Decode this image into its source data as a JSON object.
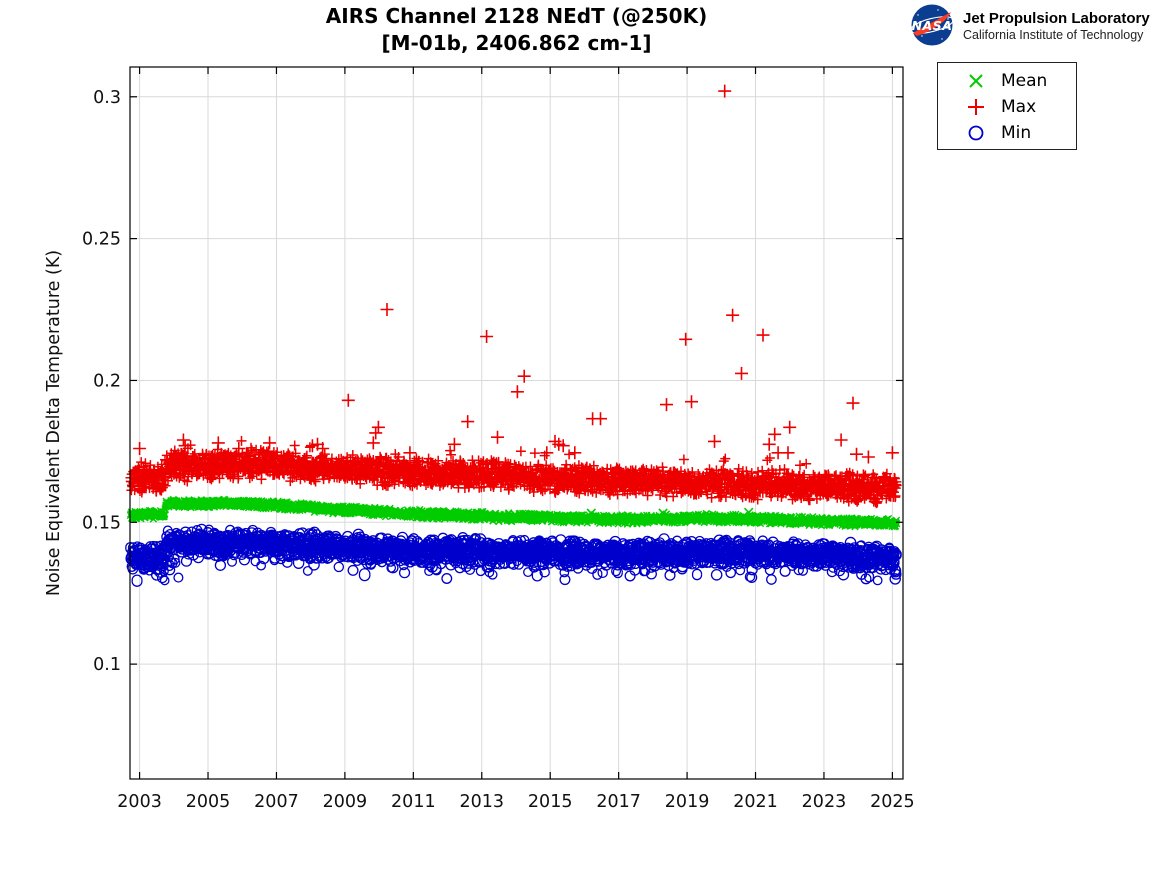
{
  "header": {
    "logo": {
      "nasa_text": "NASA",
      "org_line1": "Jet Propulsion Laboratory",
      "org_line2": "California Institute of Technology",
      "meatball_blue": "#0b3d91",
      "swoosh_red": "#fc3d21"
    }
  },
  "chart_data": {
    "type": "scatter",
    "title_line1": "AIRS Channel 2128 NEdT (@250K)",
    "title_line2": "[M-01b, 2406.862 cm-1]",
    "xlabel": "",
    "ylabel": "Noise Equivalent Delta Temperature (K)",
    "xlim": [
      2002.72,
      2025.31
    ],
    "ylim": [
      0.0595,
      0.3105
    ],
    "xticks": [
      2003,
      2005,
      2007,
      2009,
      2011,
      2013,
      2015,
      2017,
      2019,
      2021,
      2023,
      2025
    ],
    "yticks": [
      0.1,
      0.15,
      0.2,
      0.25,
      0.3
    ],
    "ytick_labels": [
      "0.1",
      "0.15",
      "0.2",
      "0.25",
      "0.3"
    ],
    "grid": true,
    "grid_color": "#d9d9d9",
    "axis_color": "#000000",
    "data_start": 2002.73,
    "data_end": 2025.13,
    "legend": {
      "position": "outside-top-right",
      "entries": [
        {
          "label": "Mean",
          "marker": "x",
          "color": "#00cc00"
        },
        {
          "label": "Max",
          "marker": "+",
          "color": "#ee0000"
        },
        {
          "label": "Min",
          "marker": "o",
          "color": "#0000cc"
        }
      ]
    },
    "series": [
      {
        "name": "Mean",
        "marker": "x",
        "color": "#00cc00",
        "band": {
          "halfwidth": 0.0013,
          "anchors": [
            [
              2002.73,
              0.1526
            ],
            [
              2003.3,
              0.1528
            ],
            [
              2003.72,
              0.1526
            ],
            [
              2003.78,
              0.1566
            ],
            [
              2004.5,
              0.1567
            ],
            [
              2005.5,
              0.1566
            ],
            [
              2006.5,
              0.1563
            ],
            [
              2007.5,
              0.1556
            ],
            [
              2008.5,
              0.1548
            ],
            [
              2009.5,
              0.154
            ],
            [
              2010.5,
              0.1532
            ],
            [
              2011.5,
              0.1527
            ],
            [
              2012.5,
              0.1522
            ],
            [
              2013.5,
              0.152
            ],
            [
              2014.5,
              0.1517
            ],
            [
              2015.5,
              0.1514
            ],
            [
              2016.5,
              0.1511
            ],
            [
              2017.5,
              0.151
            ],
            [
              2018.5,
              0.1513
            ],
            [
              2019.5,
              0.1514
            ],
            [
              2020.5,
              0.1512
            ],
            [
              2021.5,
              0.1509
            ],
            [
              2022.5,
              0.1505
            ],
            [
              2023.5,
              0.1501
            ],
            [
              2024.5,
              0.1498
            ],
            [
              2025.13,
              0.1497
            ]
          ]
        },
        "outliers": [
          [
            2016.2,
            0.1532
          ],
          [
            2018.3,
            0.1532
          ],
          [
            2020.8,
            0.1535
          ]
        ]
      },
      {
        "name": "Max",
        "marker": "+",
        "color": "#ee0000",
        "band": {
          "halfwidth": 0.0042,
          "anchors": [
            [
              2002.73,
              0.1652
            ],
            [
              2003.2,
              0.1655
            ],
            [
              2003.72,
              0.1651
            ],
            [
              2003.78,
              0.1692
            ],
            [
              2004.5,
              0.17
            ],
            [
              2005.5,
              0.1704
            ],
            [
              2006.5,
              0.1705
            ],
            [
              2007.5,
              0.17
            ],
            [
              2008.5,
              0.1693
            ],
            [
              2009.5,
              0.1685
            ],
            [
              2010.5,
              0.1679
            ],
            [
              2011.5,
              0.1673
            ],
            [
              2012.5,
              0.1669
            ],
            [
              2013.5,
              0.1664
            ],
            [
              2014.5,
              0.1659
            ],
            [
              2015.5,
              0.1652
            ],
            [
              2016.5,
              0.1647
            ],
            [
              2017.5,
              0.1643
            ],
            [
              2018.5,
              0.164
            ],
            [
              2019.5,
              0.1638
            ],
            [
              2020.5,
              0.1636
            ],
            [
              2021.5,
              0.1631
            ],
            [
              2022.5,
              0.1627
            ],
            [
              2023.5,
              0.1624
            ],
            [
              2024.5,
              0.162
            ],
            [
              2025.13,
              0.1617
            ]
          ]
        },
        "outliers": [
          [
            2003.0,
            0.176
          ],
          [
            2004.28,
            0.179
          ],
          [
            2004.33,
            0.177
          ],
          [
            2005.3,
            0.178
          ],
          [
            2005.9,
            0.176
          ],
          [
            2006.8,
            0.178
          ],
          [
            2008.05,
            0.177
          ],
          [
            2008.2,
            0.1775
          ],
          [
            2008.35,
            0.176
          ],
          [
            2009.1,
            0.193
          ],
          [
            2009.83,
            0.178
          ],
          [
            2009.9,
            0.1815
          ],
          [
            2009.98,
            0.1835
          ],
          [
            2010.23,
            0.225
          ],
          [
            2010.9,
            0.1745
          ],
          [
            2012.2,
            0.1775
          ],
          [
            2012.59,
            0.1855
          ],
          [
            2013.14,
            0.2155
          ],
          [
            2013.46,
            0.18
          ],
          [
            2014.04,
            0.196
          ],
          [
            2014.24,
            0.2015
          ],
          [
            2014.9,
            0.1745
          ],
          [
            2015.14,
            0.1785
          ],
          [
            2015.25,
            0.1775
          ],
          [
            2015.38,
            0.177
          ],
          [
            2015.72,
            0.1745
          ],
          [
            2016.24,
            0.1865
          ],
          [
            2016.47,
            0.1865
          ],
          [
            2018.4,
            0.1915
          ],
          [
            2018.96,
            0.2145
          ],
          [
            2019.13,
            0.1925
          ],
          [
            2019.8,
            0.1785
          ],
          [
            2020.1,
            0.302
          ],
          [
            2020.33,
            0.223
          ],
          [
            2020.59,
            0.2025
          ],
          [
            2021.22,
            0.216
          ],
          [
            2021.4,
            0.1775
          ],
          [
            2021.56,
            0.181
          ],
          [
            2021.66,
            0.1745
          ],
          [
            2021.95,
            0.1745
          ],
          [
            2022.0,
            0.1835
          ],
          [
            2023.5,
            0.179
          ],
          [
            2023.85,
            0.192
          ],
          [
            2023.95,
            0.174
          ],
          [
            2024.3,
            0.173
          ],
          [
            2025.0,
            0.1745
          ]
        ]
      },
      {
        "name": "Min",
        "marker": "o",
        "color": "#0000cc",
        "band": {
          "halfwidth": 0.0036,
          "anchors": [
            [
              2002.73,
              0.1374
            ],
            [
              2003.2,
              0.1377
            ],
            [
              2003.72,
              0.1373
            ],
            [
              2003.78,
              0.1425
            ],
            [
              2004.5,
              0.143
            ],
            [
              2005.5,
              0.1431
            ],
            [
              2006.5,
              0.1428
            ],
            [
              2007.5,
              0.1422
            ],
            [
              2008.5,
              0.1415
            ],
            [
              2009.5,
              0.1409
            ],
            [
              2010.5,
              0.1404
            ],
            [
              2011.5,
              0.14
            ],
            [
              2012.5,
              0.1398
            ],
            [
              2013.5,
              0.1396
            ],
            [
              2014.5,
              0.1394
            ],
            [
              2015.5,
              0.1392
            ],
            [
              2016.5,
              0.139
            ],
            [
              2017.5,
              0.1391
            ],
            [
              2018.5,
              0.1393
            ],
            [
              2019.5,
              0.1394
            ],
            [
              2020.5,
              0.1392
            ],
            [
              2021.5,
              0.1389
            ],
            [
              2022.5,
              0.1386
            ],
            [
              2023.5,
              0.1383
            ],
            [
              2024.5,
              0.1379
            ],
            [
              2025.13,
              0.1377
            ]
          ]
        },
        "outliers": []
      }
    ]
  }
}
